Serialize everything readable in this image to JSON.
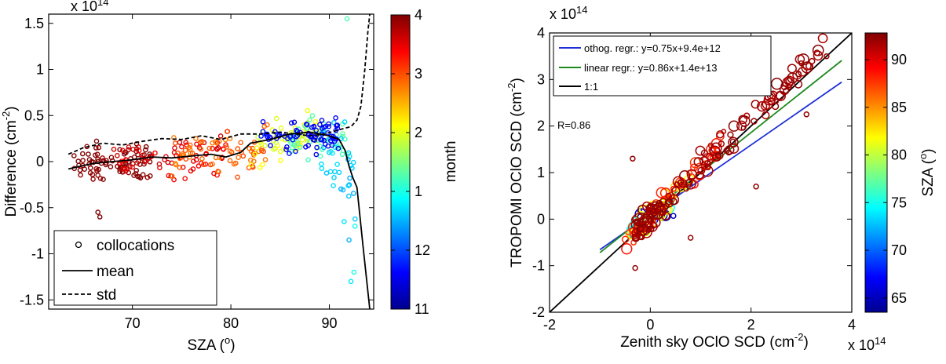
{
  "chart_data": [
    {
      "type": "scatter",
      "title": "",
      "xlabel": "SZA (",
      "xlabel_sup": "o",
      "xlabel_end": ")",
      "ylabel": "Difference (cm",
      "ylabel_sup": "-2",
      "ylabel_end": ")",
      "exponent_label": "x 10",
      "exponent_sup": "14",
      "xlim": [
        61.5,
        94.5
      ],
      "ylim": [
        -1.6,
        1.6
      ],
      "x_ticks": [
        70,
        80,
        90
      ],
      "y_ticks": [
        -1.5,
        -1,
        -0.5,
        0,
        0.5,
        1,
        1.5
      ],
      "y_tick_labels": [
        "-1.5",
        "-1",
        "-0.5",
        "0",
        "0.5",
        "1",
        "1.5"
      ],
      "grid": false,
      "legend_position": "lower-left",
      "legend": [
        {
          "label": "collocations",
          "style": "circle"
        },
        {
          "label": "mean",
          "style": "solid-line"
        },
        {
          "label": "std",
          "style": "dashed-line"
        }
      ],
      "colorbar": {
        "label": "month",
        "tick_values": [
          4,
          3,
          2,
          1,
          12,
          11
        ],
        "tick_labels": [
          "4",
          "3",
          "2",
          "1",
          "12",
          "11"
        ]
      },
      "series": [
        {
          "name": "mean",
          "x": [
            63.5,
            66,
            68,
            70,
            72,
            74,
            76,
            78,
            79.5,
            81,
            82,
            84,
            86,
            88,
            90,
            91,
            91.6,
            92,
            92.4,
            92.8,
            93.4,
            94.1
          ],
          "y": [
            -0.08,
            -0.02,
            0.0,
            0.02,
            0.05,
            0.04,
            0.06,
            0.08,
            0.05,
            0.1,
            0.2,
            0.24,
            0.3,
            0.32,
            0.28,
            0.24,
            0.12,
            -0.05,
            -0.18,
            -0.28,
            -0.9,
            -1.6
          ]
        },
        {
          "name": "std",
          "x": [
            63.5,
            65,
            67,
            69,
            71,
            73,
            75,
            77,
            79,
            81,
            83,
            85,
            86.5,
            88,
            89.5,
            90.5,
            91.5,
            92.2,
            92.8,
            93.2,
            93.6,
            93.9,
            94.1
          ],
          "y": [
            0.08,
            0.15,
            0.2,
            0.18,
            0.22,
            0.25,
            0.24,
            0.28,
            0.24,
            0.3,
            0.3,
            0.32,
            0.3,
            0.28,
            0.3,
            0.33,
            0.36,
            0.38,
            0.45,
            0.6,
            1.0,
            1.4,
            1.6
          ]
        }
      ],
      "scatter_groups": [
        {
          "month": 4,
          "x_range": [
            64,
            72
          ],
          "y_center": [
            -0.05,
            0.02
          ],
          "spread": 0.2,
          "count": 90
        },
        {
          "month": 3.5,
          "x_range": [
            68,
            80
          ],
          "y_center": [
            0.0,
            0.1
          ],
          "spread": 0.22,
          "count": 70
        },
        {
          "month": 2.9,
          "x_range": [
            74,
            84
          ],
          "y_center": [
            0.05,
            0.15
          ],
          "spread": 0.25,
          "count": 70
        },
        {
          "month": 2,
          "x_range": [
            82,
            89
          ],
          "y_center": [
            0.2,
            0.3
          ],
          "spread": 0.22,
          "count": 60
        },
        {
          "month": 1.3,
          "x_range": [
            86,
            92
          ],
          "y_center": [
            0.25,
            0.2
          ],
          "spread": 0.25,
          "count": 40
        },
        {
          "month": 0.6,
          "x_range": [
            89,
            93
          ],
          "y_center": [
            0.2,
            -0.2
          ],
          "spread": 0.4,
          "count": 35
        },
        {
          "month": 0,
          "x_range": [
            83,
            91
          ],
          "y_center": [
            0.25,
            0.28
          ],
          "spread": 0.18,
          "count": 80
        }
      ]
    },
    {
      "type": "scatter",
      "title": "",
      "xlabel": "Zenith sky OClO SCD (cm",
      "xlabel_sup": "-2",
      "xlabel_end": ")",
      "ylabel": "TROPOMI OClO SCD (cm",
      "ylabel_sup": "-2",
      "ylabel_end": ")",
      "exponent_label": "x 10",
      "exponent_sup": "14",
      "xlim": [
        -2,
        4
      ],
      "ylim": [
        -2,
        4
      ],
      "x_ticks": [
        -2,
        0,
        2,
        4
      ],
      "y_ticks": [
        -2,
        -1,
        0,
        1,
        2,
        3,
        4
      ],
      "grid": false,
      "legend_position": "top-left",
      "legend": [
        {
          "label": "othog. regr.: y=0.75x+9.4e+12",
          "color": "#1f2fd6"
        },
        {
          "label": "linear regr.: y=0.86x+1.4e+13",
          "color": "#1e8a1e"
        },
        {
          "label": "1:1",
          "color": "#000000"
        }
      ],
      "annotation": "R=0.86",
      "colorbar": {
        "label": "SZA (",
        "label_sup": "o",
        "label_end": ")",
        "range": [
          63.5,
          92.8
        ],
        "tick_values": [
          65,
          70,
          75,
          80,
          85,
          90
        ],
        "tick_labels": [
          "65",
          "70",
          "75",
          "80",
          "85",
          "90"
        ]
      },
      "lines": [
        {
          "name": "othog. regr.: y=0.75x+9.4e+12",
          "slope": 0.75,
          "intercept": 0.094,
          "x": [
            -1,
            3.8
          ]
        },
        {
          "name": "linear regr.: y=0.86x+1.4e+13",
          "slope": 0.86,
          "intercept": 0.14,
          "x": [
            -1,
            3.8
          ]
        },
        {
          "name": "1:1",
          "slope": 1,
          "intercept": 0,
          "x": [
            -2,
            4
          ]
        }
      ],
      "scatter_groups": [
        {
          "sza": 92,
          "x_range": [
            -0.3,
            3.5
          ],
          "slope": 1.05,
          "spread": 0.3,
          "count": 150
        },
        {
          "sza": 88,
          "x_range": [
            -0.5,
            1.4
          ],
          "slope": 1.1,
          "spread": 0.25,
          "count": 50
        },
        {
          "sza": 82,
          "x_range": [
            -0.4,
            0.8
          ],
          "slope": 1.0,
          "spread": 0.3,
          "count": 30
        },
        {
          "sza": 75,
          "x_range": [
            -0.4,
            0.4
          ],
          "slope": 0.6,
          "spread": 0.15,
          "count": 15
        },
        {
          "sza": 65,
          "x_range": [
            -0.3,
            0.5
          ],
          "slope": 0.1,
          "spread": 0.1,
          "count": 10
        }
      ]
    }
  ]
}
